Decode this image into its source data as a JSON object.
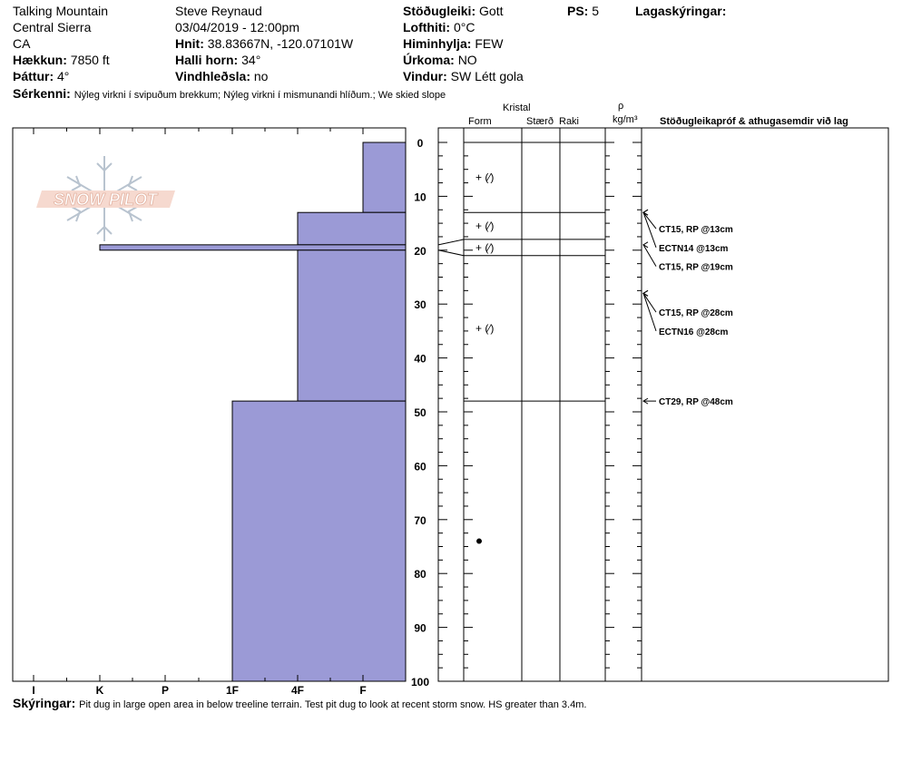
{
  "header": {
    "location": "Talking Mountain",
    "range": "Central Sierra",
    "state": "CA",
    "elevation_label": "Hækkun:",
    "elevation_value": "7850 ft",
    "aspect_label": "Þáttur:",
    "aspect_value": "4°",
    "observer": "Steve Reynaud",
    "datetime": "03/04/2019 - 12:00pm",
    "coords_label": "Hnit:",
    "coords_value": "38.83667N, -120.07101W",
    "slope_label": "Halli horn:",
    "slope_value": "34°",
    "wind_loading_label": "Vindhleðsla:",
    "wind_loading_value": "no",
    "stability_label": "Stöðugleiki:",
    "stability_value": "Gott",
    "air_temp_label": "Lofthiti:",
    "air_temp_value": "0°C",
    "sky_label": "Himinhylja:",
    "sky_value": "FEW",
    "precip_label": "Úrkoma:",
    "precip_value": "NO",
    "wind_label": "Vindur:",
    "wind_value": "SW  Létt gola",
    "ps_label": "PS:",
    "ps_value": "5",
    "layer_notes_label": "Lagaskýringar:",
    "features_label": "Sérkenni:",
    "features_value": "Nýleg virkni í svipuðum brekkum; Nýleg virkni í mismunandi hlíðum.; We skied slope"
  },
  "logo_text": "SNOW PILOT",
  "columns": {
    "crystal": "Kristal",
    "form": "Form",
    "size": "Stærð",
    "moisture": "Raki",
    "density_symbol": "ρ",
    "density_unit": "kg/m³",
    "tests_header": "Stöðugleikapróf & athugasemdir við lag"
  },
  "footer": {
    "comments_label": "Skýringar:",
    "comments_value": "Pit dug in large open area in below treeline terrain. Test pit dug to look at recent storm snow. HS greater than 3.4m."
  },
  "colors": {
    "hardness_fill": "#9b9ad6"
  },
  "chart_data": {
    "type": "snow-profile",
    "depth_axis": {
      "unit": "cm",
      "min": 0,
      "max": 100,
      "labels": [
        0,
        10,
        20,
        30,
        40,
        50,
        60,
        70,
        80,
        90,
        100
      ]
    },
    "hardness_axis": {
      "labels": [
        "I",
        "K",
        "P",
        "1F",
        "4F",
        "F"
      ]
    },
    "hardness_profile": [
      {
        "top": 0,
        "bottom": 13,
        "hardness": "F"
      },
      {
        "top": 13,
        "bottom": 19,
        "hardness": "4F"
      },
      {
        "top": 19,
        "bottom": 20,
        "hardness": "K"
      },
      {
        "top": 20,
        "bottom": 48,
        "hardness": "4F"
      },
      {
        "top": 48,
        "bottom": 100,
        "hardness": "1F"
      }
    ],
    "layer_boundaries": [
      0,
      13,
      18,
      21,
      48
    ],
    "layer_forms": [
      {
        "depth": 6.5,
        "symbol": "+ (⁄)"
      },
      {
        "depth": 15.5,
        "symbol": "+ (⁄)"
      },
      {
        "depth": 19.5,
        "symbol": "+ (⁄)"
      },
      {
        "depth": 34.5,
        "symbol": "+ (⁄)"
      },
      {
        "depth": 74,
        "symbol": "•"
      }
    ],
    "tests": [
      {
        "depth": 13,
        "label": "CT15, RP @13cm",
        "label_at": 16
      },
      {
        "depth": 13,
        "label": "ECTN14 @13cm",
        "label_at": 19.5
      },
      {
        "depth": 19,
        "label": "CT15, RP @19cm",
        "label_at": 23
      },
      {
        "depth": 28,
        "label": "CT15, RP @28cm",
        "label_at": 31.5
      },
      {
        "depth": 28,
        "label": "ECTN16 @28cm",
        "label_at": 35
      },
      {
        "depth": 48,
        "label": "CT29, RP @48cm",
        "label_at": 48
      }
    ]
  }
}
